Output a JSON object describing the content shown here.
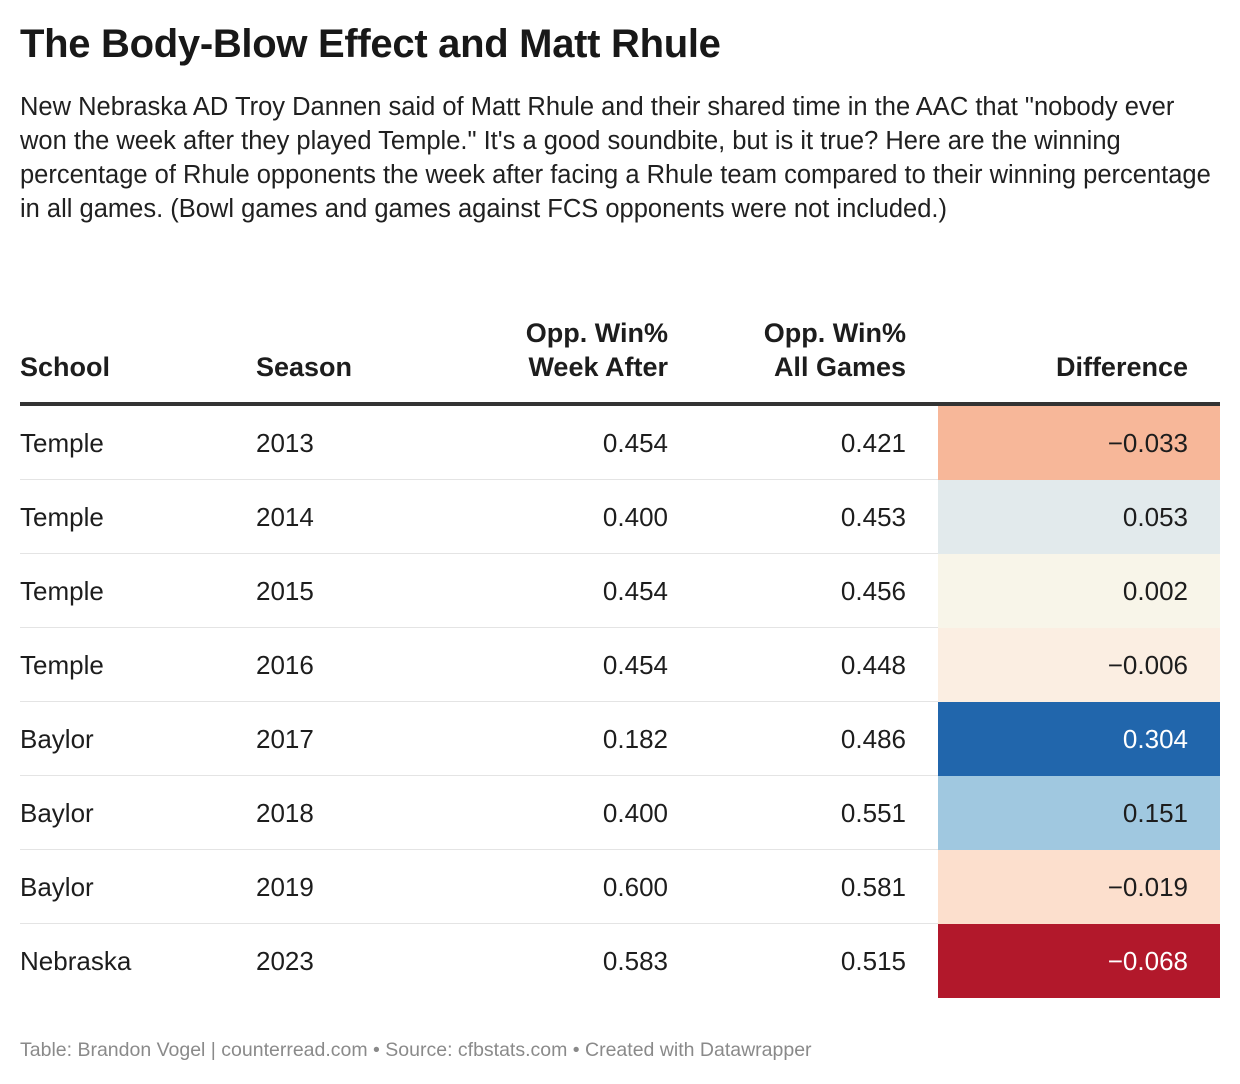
{
  "title": "The Body-Blow Effect and Matt Rhule",
  "description": "New Nebraska AD Troy Dannen said of Matt Rhule and their shared time in the AAC that \"nobody ever won the week after they played Temple.\" It's a good soundbite, but is it true? Here are the winning percentage of Rhule opponents the week after facing a Rhule team compared to their winning percentage in all games. (Bowl games and games against FCS opponents were not included.)",
  "footer": "Table: Brandon Vogel | counterread.com • Source: cfbstats.com • Created with Datawrapper",
  "chart_data": {
    "type": "table",
    "columns": {
      "school": "School",
      "season": "Season",
      "week_after": [
        "Opp. Win%",
        "Week After"
      ],
      "all_games": [
        "Opp. Win%",
        "All Games"
      ],
      "difference": "Difference"
    },
    "rows": [
      {
        "school": "Temple",
        "season": "2013",
        "week_after": "0.454",
        "all_games": "0.421",
        "difference": "−0.033",
        "bg": "#f7b799",
        "fg": "#1d1d1d"
      },
      {
        "school": "Temple",
        "season": "2014",
        "week_after": "0.400",
        "all_games": "0.453",
        "difference": "0.053",
        "bg": "#e2eaec",
        "fg": "#1d1d1d"
      },
      {
        "school": "Temple",
        "season": "2015",
        "week_after": "0.454",
        "all_games": "0.456",
        "difference": "0.002",
        "bg": "#f8f5e9",
        "fg": "#1d1d1d"
      },
      {
        "school": "Temple",
        "season": "2016",
        "week_after": "0.454",
        "all_games": "0.448",
        "difference": "−0.006",
        "bg": "#fbeee2",
        "fg": "#1d1d1d"
      },
      {
        "school": "Baylor",
        "season": "2017",
        "week_after": "0.182",
        "all_games": "0.486",
        "difference": "0.304",
        "bg": "#2166ac",
        "fg": "#ffffff"
      },
      {
        "school": "Baylor",
        "season": "2018",
        "week_after": "0.400",
        "all_games": "0.551",
        "difference": "0.151",
        "bg": "#a0c8e0",
        "fg": "#1d1d1d"
      },
      {
        "school": "Baylor",
        "season": "2019",
        "week_after": "0.600",
        "all_games": "0.581",
        "difference": "−0.019",
        "bg": "#fcdfcd",
        "fg": "#1d1d1d"
      },
      {
        "school": "Nebraska",
        "season": "2023",
        "week_after": "0.583",
        "all_games": "0.515",
        "difference": "−0.068",
        "bg": "#b2182b",
        "fg": "#ffffff"
      }
    ]
  }
}
